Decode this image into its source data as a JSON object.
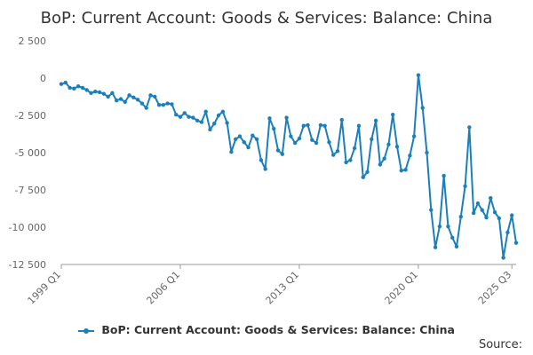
{
  "chart_data": {
    "type": "line",
    "title": "BoP: Current Account: Goods & Services: Balance: China",
    "xlabel": "",
    "ylabel": "",
    "ylim": [
      -12500,
      2500
    ],
    "y_ticks": [
      2500,
      0,
      -2500,
      -5000,
      -7500,
      -10000,
      -12500
    ],
    "y_tick_labels": [
      "2 500",
      "0",
      "-2 500",
      "-5 000",
      "-7 500",
      "-10 000",
      "-12 500"
    ],
    "x_ticks": [
      "1999 Q1",
      "2006 Q1",
      "2013 Q1",
      "2020 Q1",
      "2025 Q3"
    ],
    "x_tick_index": [
      0,
      28,
      56,
      84,
      106
    ],
    "grid": false,
    "legend_position": "bottom",
    "series": [
      {
        "name": "BoP: Current Account: Goods & Services: Balance: China",
        "color": "#1b7fbd",
        "values": [
          -400,
          -300,
          -650,
          -700,
          -550,
          -650,
          -800,
          -1000,
          -900,
          -950,
          -1050,
          -1250,
          -1000,
          -1500,
          -1400,
          -1600,
          -1150,
          -1300,
          -1450,
          -1700,
          -2000,
          -1150,
          -1250,
          -1800,
          -1800,
          -1700,
          -1750,
          -2450,
          -2600,
          -2350,
          -2600,
          -2650,
          -2850,
          -2950,
          -2250,
          -3450,
          -3050,
          -2500,
          -2250,
          -3000,
          -4950,
          -4100,
          -3900,
          -4300,
          -4650,
          -3850,
          -4100,
          -5500,
          -6100,
          -2700,
          -3400,
          -4850,
          -5100,
          -2650,
          -3900,
          -4350,
          -4050,
          -3200,
          -3150,
          -4150,
          -4350,
          -3150,
          -3200,
          -4300,
          -5150,
          -4900,
          -2800,
          -5650,
          -5500,
          -4700,
          -3200,
          -6650,
          -6300,
          -4100,
          -2850,
          -5800,
          -5400,
          -4450,
          -2450,
          -4600,
          -6200,
          -6150,
          -5200,
          -3900,
          200,
          -2000,
          -5000,
          -8850,
          -11350,
          -9950,
          -6550,
          -9950,
          -10700,
          -11300,
          -9300,
          -7250,
          -3300,
          -9050,
          -8400,
          -8850,
          -9350,
          -8050,
          -9000,
          -9400,
          -12050,
          -10350,
          -9200,
          -11050
        ]
      }
    ]
  },
  "footer": {
    "source_label": "Source:"
  }
}
